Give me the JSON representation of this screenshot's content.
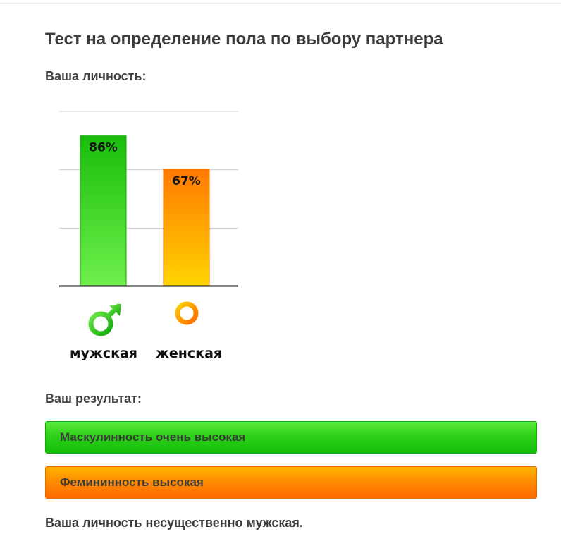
{
  "title": "Тест на определение пола по выбору партнера",
  "personality_label": "Ваша личность:",
  "chart_data": {
    "type": "bar",
    "categories": [
      "мужская",
      "женская"
    ],
    "values": [
      86,
      67
    ],
    "value_labels": [
      "86%",
      "67%"
    ],
    "ylim": [
      0,
      100
    ],
    "grid": true,
    "colors": [
      "#22c414",
      "#ff8a00"
    ],
    "icons": [
      "male-symbol-icon",
      "female-symbol-icon"
    ]
  },
  "result_label": "Ваш результат:",
  "results": [
    {
      "text": "Маскулинность очень высокая",
      "color": "#22c414"
    },
    {
      "text": "Фемининность высокая",
      "color": "#ff8a00"
    }
  ],
  "conclusion": "Ваша личность несущественно мужская."
}
